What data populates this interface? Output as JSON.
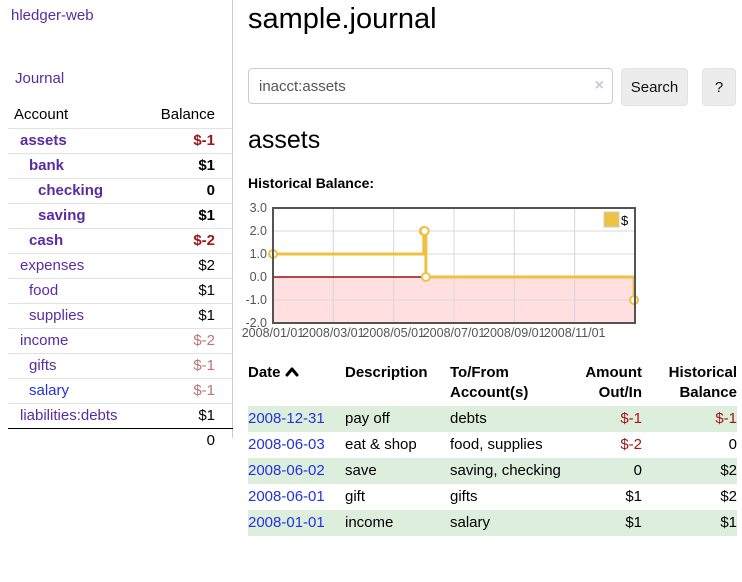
{
  "app": {
    "brand": "hledger-web"
  },
  "colors": {
    "link_purple": "#5a2ca0",
    "link_blue": "#2233dd",
    "negative_strong": "#a11616",
    "negative_soft": "#c07474",
    "row_stripe_green": "#ddeedd"
  },
  "sidebar": {
    "journal_link": "Journal",
    "accounts_table": {
      "headers": [
        "Account",
        "Balance"
      ],
      "rows": [
        {
          "name": "assets",
          "depth": 1,
          "bold": true,
          "balance": "$-1",
          "neg": "strong",
          "link": "purple"
        },
        {
          "name": "bank",
          "depth": 2,
          "bold": true,
          "balance": "$1",
          "neg": "none",
          "link": "purple"
        },
        {
          "name": "checking",
          "depth": 3,
          "bold": true,
          "balance": "0",
          "neg": "none",
          "link": "purple"
        },
        {
          "name": "saving",
          "depth": 3,
          "bold": true,
          "balance": "$1",
          "neg": "none",
          "link": "purple"
        },
        {
          "name": "cash",
          "depth": 2,
          "bold": true,
          "balance": "$-2",
          "neg": "strong",
          "link": "purple"
        },
        {
          "name": "expenses",
          "depth": 1,
          "bold": false,
          "balance": "$2",
          "neg": "none",
          "link": "purple"
        },
        {
          "name": "food",
          "depth": 2,
          "bold": false,
          "balance": "$1",
          "neg": "none",
          "link": "purple"
        },
        {
          "name": "supplies",
          "depth": 2,
          "bold": false,
          "balance": "$1",
          "neg": "none",
          "link": "purple"
        },
        {
          "name": "income",
          "depth": 1,
          "bold": false,
          "balance": "$-2",
          "neg": "soft",
          "link": "purple"
        },
        {
          "name": "gifts",
          "depth": 2,
          "bold": false,
          "balance": "$-1",
          "neg": "soft",
          "link": "purple"
        },
        {
          "name": "salary",
          "depth": 2,
          "bold": false,
          "balance": "$-1",
          "neg": "soft",
          "link": "blue"
        },
        {
          "name": "liabilities:debts",
          "depth": 1,
          "bold": false,
          "balance": "$1",
          "neg": "none",
          "link": "purple"
        }
      ],
      "total": "0"
    }
  },
  "main": {
    "title": "sample.journal",
    "search": {
      "value": "inacct:assets",
      "clear_icon": "×",
      "search_button": "Search",
      "help_button": "?"
    },
    "account_heading": "assets",
    "chart_label": "Historical Balance:"
  },
  "chart_data": {
    "type": "line",
    "title": "Historical Balance",
    "legend": [
      {
        "label": "$",
        "color": "#edc240"
      }
    ],
    "legend_position": "top-right",
    "grid": true,
    "ylim": [
      -2.0,
      3.0
    ],
    "y_ticks": [
      3.0,
      2.0,
      1.0,
      0.0,
      -1.0,
      -2.0
    ],
    "x_tick_labels": [
      "2008/01/01",
      "2008/03/01",
      "2008/05/01",
      "2008/07/01",
      "2008/09/01",
      "2008/11/01"
    ],
    "x_tick_months": [
      0,
      2,
      4,
      6,
      8,
      10
    ],
    "x_months_range": [
      0,
      12
    ],
    "points": [
      {
        "date": "2008-01-01",
        "m": 0,
        "value": 1
      },
      {
        "date": "2008-06-01",
        "m": 5.0,
        "value": 2
      },
      {
        "date": "2008-06-02",
        "m": 5.03,
        "value": 2
      },
      {
        "date": "2008-06-03",
        "m": 5.07,
        "value": 0
      },
      {
        "date": "2008-12-31",
        "m": 11.97,
        "value": -1
      }
    ],
    "series_color": "#edc240",
    "marker_fill": "#ffffff",
    "negative_region_color": "#ffdfdf",
    "zero_line_color": "#991111",
    "gridline_color": "#d8d8d8",
    "border_color": "#545454",
    "tick_label_color": "#545454"
  },
  "register_table": {
    "headers": [
      "Date",
      "Description",
      "To/From Account(s)",
      "Amount Out/In",
      "Historical Balance"
    ],
    "rows": [
      {
        "date": "2008-12-31",
        "description": "pay off",
        "accounts": "debts",
        "amount": "$-1",
        "amount_neg": true,
        "balance": "$-1",
        "balance_neg": true
      },
      {
        "date": "2008-06-03",
        "description": "eat & shop",
        "accounts": "food, supplies",
        "amount": "$-2",
        "amount_neg": true,
        "balance": "0",
        "balance_neg": false
      },
      {
        "date": "2008-06-02",
        "description": "save",
        "accounts": "saving, checking",
        "amount": "0",
        "amount_neg": false,
        "balance": "$2",
        "balance_neg": false
      },
      {
        "date": "2008-06-01",
        "description": "gift",
        "accounts": "gifts",
        "amount": "$1",
        "amount_neg": false,
        "balance": "$2",
        "balance_neg": false
      },
      {
        "date": "2008-01-01",
        "description": "income",
        "accounts": "salary",
        "amount": "$1",
        "amount_neg": false,
        "balance": "$1",
        "balance_neg": false
      }
    ]
  }
}
